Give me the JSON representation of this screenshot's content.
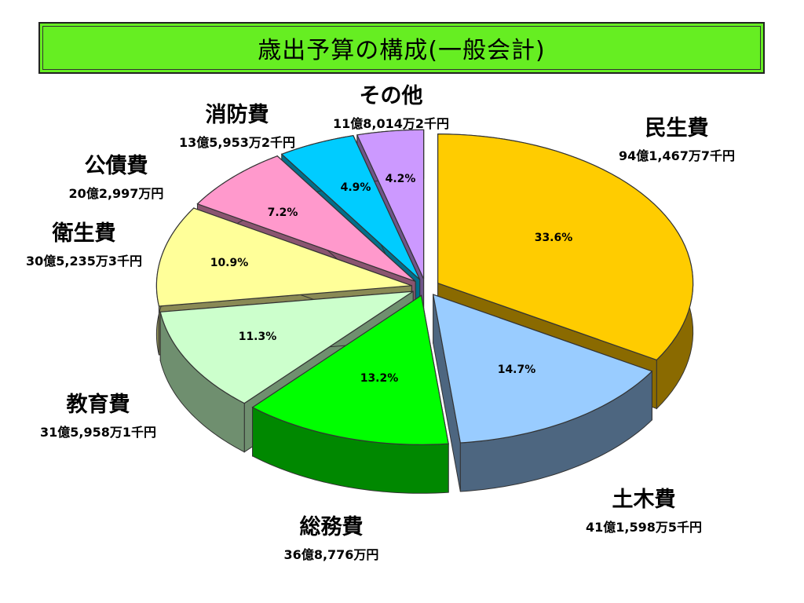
{
  "title": "歳出予算の構成(一般会計)",
  "chart_data": {
    "type": "pie",
    "style": "3d-exploded",
    "title": "歳出予算の構成(一般会計)",
    "slices": [
      {
        "name": "民生費",
        "amount": "94億1,467万7千円",
        "percent": 33.6,
        "percent_label": "33.6%",
        "color": "#ffcc00",
        "side_color": "#8a6a00"
      },
      {
        "name": "土木費",
        "amount": "41億1,598万5千円",
        "percent": 14.7,
        "percent_label": "14.7%",
        "color": "#99ccff",
        "side_color": "#4d6680"
      },
      {
        "name": "総務費",
        "amount": "36億8,776万円",
        "percent": 13.2,
        "percent_label": "13.2%",
        "color": "#00ff00",
        "side_color": "#008800"
      },
      {
        "name": "教育費",
        "amount": "31億5,958万1千円",
        "percent": 11.3,
        "percent_label": "11.3%",
        "color": "#ccffcc",
        "side_color": "#6f8f6f"
      },
      {
        "name": "衛生費",
        "amount": "30億5,235万3千円",
        "percent": 10.9,
        "percent_label": "10.9%",
        "color": "#ffff99",
        "side_color": "#8a8a55"
      },
      {
        "name": "公債費",
        "amount": "20億2,997万円",
        "percent": 7.2,
        "percent_label": "7.2%",
        "color": "#ff99cc",
        "side_color": "#8a5570"
      },
      {
        "name": "消防費",
        "amount": "13億5,953万2千円",
        "percent": 4.9,
        "percent_label": "4.9%",
        "color": "#00ccff",
        "side_color": "#006f8a"
      },
      {
        "name": "その他",
        "amount": "11億8,014万2千円",
        "percent": 4.2,
        "percent_label": "4.2%",
        "color": "#cc99ff",
        "side_color": "#6f558a"
      }
    ]
  }
}
